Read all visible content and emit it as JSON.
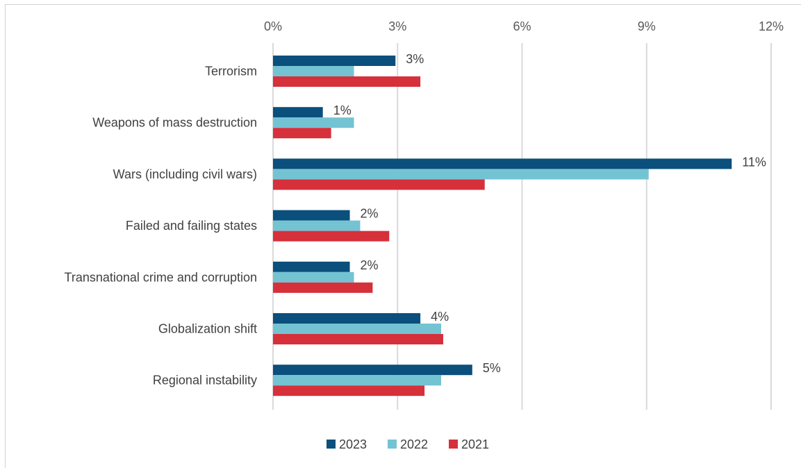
{
  "chart_data": {
    "type": "bar",
    "orientation": "horizontal",
    "categories": [
      "Terrorism",
      "Weapons of mass destruction",
      "Wars (including civil wars)",
      "Failed and failing states",
      "Transnational crime and corruption",
      "Globalization shift",
      "Regional instability"
    ],
    "series": [
      {
        "name": "2023",
        "color": "#0b4f7c",
        "values": [
          2.95,
          1.2,
          11.05,
          1.85,
          1.85,
          3.55,
          4.8
        ],
        "labels": [
          "3%",
          "1%",
          "11%",
          "2%",
          "2%",
          "4%",
          "5%"
        ]
      },
      {
        "name": "2022",
        "color": "#74c3d3",
        "values": [
          1.95,
          1.95,
          9.05,
          2.1,
          1.95,
          4.05,
          4.05
        ]
      },
      {
        "name": "2021",
        "color": "#d6303b",
        "values": [
          3.55,
          1.4,
          5.1,
          2.8,
          2.4,
          4.1,
          3.65
        ]
      }
    ],
    "xticks": [
      "0%",
      "3%",
      "6%",
      "9%",
      "12%"
    ],
    "xlim": [
      0,
      12
    ],
    "grid": true,
    "legend": "bottom"
  }
}
